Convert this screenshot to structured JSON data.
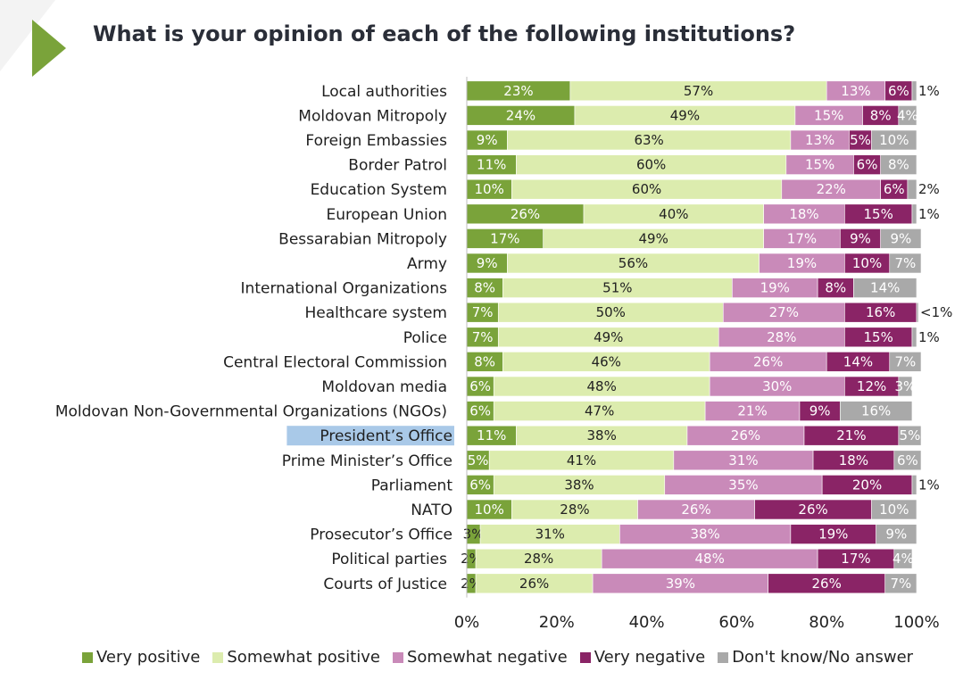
{
  "title": "What is your opinion of each of the following institutions?",
  "chart_data": {
    "type": "bar",
    "orientation": "horizontal",
    "stacked": true,
    "title": "What is your opinion of each of the following institutions?",
    "xlim": [
      0,
      100
    ],
    "x_ticks": [
      "0%",
      "20%",
      "40%",
      "60%",
      "80%",
      "100%"
    ],
    "highlighted_category": "President’s Office",
    "legend_position": "bottom",
    "categories": [
      "Local authorities",
      "Moldovan Mitropoly",
      "Foreign Embassies",
      "Border Patrol",
      "Education System",
      "European Union",
      "Bessarabian Mitropoly",
      "Army",
      "International Organizations",
      "Healthcare system",
      "Police",
      "Central Electoral Commission",
      "Moldovan media",
      "Moldovan Non-Governmental Organizations (NGOs)",
      "President’s Office",
      "Prime Minister’s Office",
      "Parliament",
      "NATO",
      "Prosecutor’s Office",
      "Political parties",
      "Courts of Justice"
    ],
    "series": [
      {
        "name": "Very positive",
        "color": "#7aa33a",
        "values": [
          23,
          24,
          9,
          11,
          10,
          26,
          17,
          9,
          8,
          7,
          7,
          8,
          6,
          6,
          11,
          5,
          6,
          10,
          3,
          2,
          2
        ],
        "labels": [
          "23%",
          "24%",
          "9%",
          "11%",
          "10%",
          "26%",
          "17%",
          "9%",
          "8%",
          "7%",
          "7%",
          "8%",
          "6%",
          "6%",
          "11%",
          "5%",
          "6%",
          "10%",
          "3%",
          "2%",
          "2%"
        ]
      },
      {
        "name": "Somewhat positive",
        "color": "#dcecae",
        "values": [
          57,
          49,
          63,
          60,
          60,
          40,
          49,
          56,
          51,
          50,
          49,
          46,
          48,
          47,
          38,
          41,
          38,
          28,
          31,
          28,
          26
        ],
        "labels": [
          "57%",
          "49%",
          "63%",
          "60%",
          "60%",
          "40%",
          "49%",
          "56%",
          "51%",
          "50%",
          "49%",
          "46%",
          "48%",
          "47%",
          "38%",
          "41%",
          "38%",
          "28%",
          "31%",
          "28%",
          "26%"
        ]
      },
      {
        "name": "Somewhat negative",
        "color": "#c98ab9",
        "values": [
          13,
          15,
          13,
          15,
          22,
          18,
          17,
          19,
          19,
          27,
          28,
          26,
          30,
          21,
          26,
          31,
          35,
          26,
          38,
          48,
          39
        ],
        "labels": [
          "13%",
          "15%",
          "13%",
          "15%",
          "22%",
          "18%",
          "17%",
          "19%",
          "19%",
          "27%",
          "28%",
          "26%",
          "30%",
          "21%",
          "26%",
          "31%",
          "35%",
          "26%",
          "38%",
          "48%",
          "39%"
        ]
      },
      {
        "name": "Very negative",
        "color": "#8a2466",
        "values": [
          6,
          8,
          5,
          6,
          6,
          15,
          9,
          10,
          8,
          16,
          15,
          14,
          12,
          9,
          21,
          18,
          20,
          26,
          19,
          17,
          26
        ],
        "labels": [
          "6%",
          "8%",
          "5%",
          "6%",
          "6%",
          "15%",
          "9%",
          "10%",
          "8%",
          "16%",
          "15%",
          "14%",
          "12%",
          "9%",
          "21%",
          "18%",
          "20%",
          "26%",
          "19%",
          "17%",
          "26%"
        ]
      },
      {
        "name": "Don't know/No answer",
        "color": "#a9a9a9",
        "values": [
          1,
          4,
          10,
          8,
          2,
          1,
          9,
          7,
          14,
          0.4,
          1,
          7,
          3,
          16,
          5,
          6,
          1,
          10,
          9,
          4,
          7
        ],
        "labels": [
          "1%",
          "4%",
          "10%",
          "8%",
          "2%",
          "1%",
          "9%",
          "7%",
          "14%",
          "<1%",
          "1%",
          "7%",
          "3%",
          "16%",
          "5%",
          "6%",
          "1%",
          "10%",
          "9%",
          "4%",
          "7%"
        ]
      }
    ]
  },
  "legend": {
    "items": [
      {
        "label": "Very positive",
        "color": "#7aa33a"
      },
      {
        "label": "Somewhat positive",
        "color": "#dcecae"
      },
      {
        "label": "Somewhat negative",
        "color": "#c98ab9"
      },
      {
        "label": "Very negative",
        "color": "#8a2466"
      },
      {
        "label": "Don't know/No answer",
        "color": "#a9a9a9"
      }
    ]
  },
  "highlight_color": "#a9c9e8",
  "accent_color": "#7aa33a",
  "deco_color": "#f2f2f2"
}
